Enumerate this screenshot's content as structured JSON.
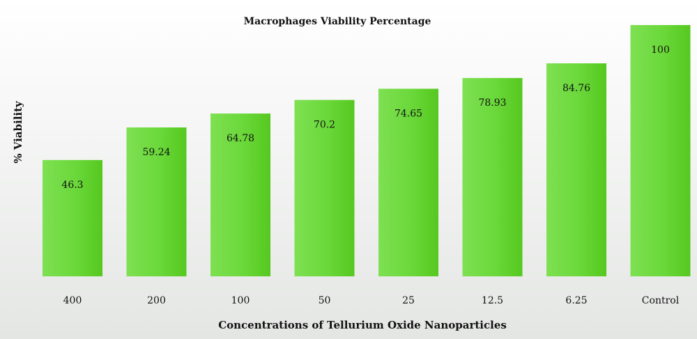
{
  "chart_data": {
    "type": "bar",
    "title": "Macrophages Viability Percentage",
    "xlabel": "Concentrations of Tellurium Oxide Nanoparticles",
    "ylabel": "% Viability",
    "categories": [
      "400",
      "200",
      "100",
      "50",
      "25",
      "12.5",
      "6.25",
      "Control"
    ],
    "values": [
      46.3,
      59.24,
      64.78,
      70.2,
      74.65,
      78.93,
      84.76,
      100
    ],
    "data_labels": [
      "46.3",
      "59.24",
      "64.78",
      "70.2",
      "74.65",
      "78.93",
      "84.76",
      "100"
    ],
    "ylim": [
      0,
      100
    ],
    "grid": false,
    "legend": "none",
    "colors": {
      "bar_light": "#7ee052",
      "bar_dark": "#56c81f",
      "background_top": "#ffffff",
      "background_bottom": "#e4e6e4"
    }
  }
}
